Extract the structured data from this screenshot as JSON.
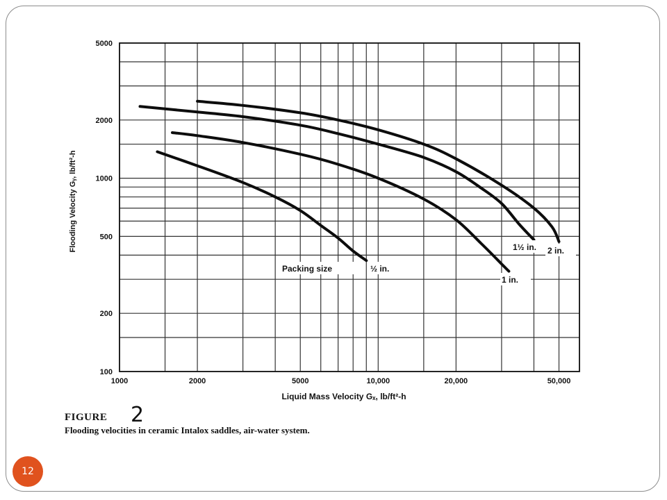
{
  "slide": {
    "slide_number": "12",
    "figure_label": "FIGURE",
    "figure_number": "2",
    "caption": "Flooding velocities in ceramic Intalox saddles, air-water system."
  },
  "chart_data": {
    "type": "line",
    "title": "",
    "xlabel": "Liquid Mass Velocity Gₓ, lb/ft²-h",
    "ylabel": "Flooding Velocity Gᵧ, lb/ft²-h",
    "x_scale": "log",
    "y_scale": "log",
    "xlim": [
      1000,
      60000
    ],
    "ylim": [
      100,
      5000
    ],
    "grid": true,
    "x_tick_values": [
      1000,
      2000,
      5000,
      10000,
      20000,
      50000
    ],
    "x_tick_labels": [
      "1000",
      "2000",
      "5000",
      "10,000",
      "20,000",
      "50,000"
    ],
    "y_tick_values": [
      100,
      200,
      500,
      1000,
      2000,
      5000
    ],
    "y_tick_labels": [
      "100",
      "200",
      "500",
      "1000",
      "2000",
      "5000"
    ],
    "x_gridlines": [
      1000,
      1500,
      2000,
      3000,
      4000,
      5000,
      6000,
      7000,
      8000,
      9000,
      10000,
      15000,
      20000,
      30000,
      40000,
      50000,
      60000
    ],
    "y_gridlines": [
      100,
      150,
      200,
      300,
      400,
      500,
      600,
      700,
      800,
      900,
      1000,
      1500,
      2000,
      3000,
      4000,
      5000
    ],
    "annotation_packing": "Packing size",
    "series": [
      {
        "name": "½ in.",
        "x": [
          1400,
          2000,
          3000,
          4000,
          5000,
          6000,
          7000,
          8000,
          9000
        ],
        "y": [
          1370,
          1160,
          950,
          800,
          680,
          570,
          490,
          420,
          375
        ]
      },
      {
        "name": "1 in.",
        "x": [
          1600,
          2000,
          3000,
          5000,
          7000,
          10000,
          15000,
          20000,
          25000,
          30000,
          32000
        ],
        "y": [
          1720,
          1660,
          1530,
          1330,
          1180,
          1000,
          780,
          610,
          460,
          360,
          330
        ]
      },
      {
        "name": "1½ in.",
        "x": [
          1200,
          2000,
          3000,
          5000,
          7000,
          10000,
          15000,
          20000,
          25000,
          30000,
          35000,
          40000
        ],
        "y": [
          2350,
          2200,
          2080,
          1880,
          1700,
          1500,
          1280,
          1080,
          890,
          740,
          580,
          480
        ]
      },
      {
        "name": "2 in.",
        "x": [
          2000,
          3000,
          5000,
          7000,
          10000,
          15000,
          20000,
          30000,
          40000,
          47000,
          50000
        ],
        "y": [
          2500,
          2380,
          2180,
          2000,
          1780,
          1500,
          1260,
          920,
          700,
          560,
          470
        ]
      }
    ]
  }
}
